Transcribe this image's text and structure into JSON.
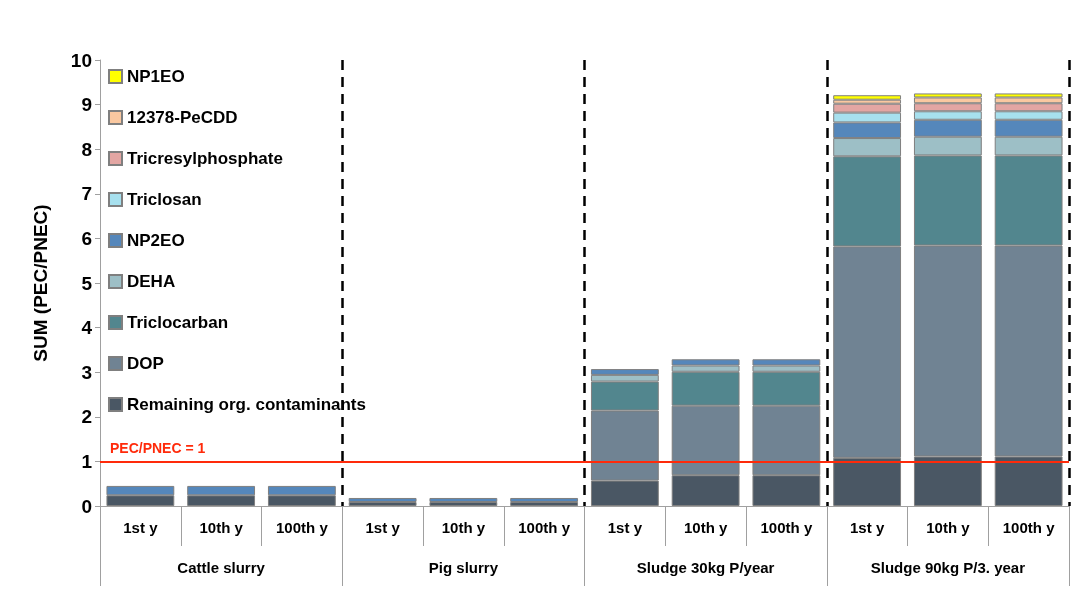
{
  "chart_data": {
    "type": "bar",
    "stacked": true,
    "ylabel": "SUM (PEC/PNEC)",
    "categories": [
      "1st y",
      "10th y",
      "100th y",
      "1st y",
      "10th y",
      "100th y",
      "1st y",
      "10th y",
      "100th y",
      "1st y",
      "10th y",
      "100th y"
    ],
    "annotations": [
      "Cattle slurry",
      "Pig slurry",
      "Sludge 30kg P/year",
      "Sludge 90kg P/3. year"
    ],
    "series": [
      {
        "name": "Remaining org. contaminants",
        "color": "#4a5764",
        "values": [
          0.24,
          0.24,
          0.24,
          0.09,
          0.09,
          0.09,
          0.57,
          0.69,
          0.69,
          1.08,
          1.11,
          1.11
        ]
      },
      {
        "name": "DOP",
        "color": "#708393",
        "values": [
          0,
          0,
          0,
          0,
          0,
          0,
          1.57,
          1.56,
          1.56,
          4.74,
          4.73,
          4.73
        ]
      },
      {
        "name": "Triclocarban",
        "color": "#52868e",
        "values": [
          0,
          0,
          0,
          0,
          0,
          0,
          0.65,
          0.76,
          0.76,
          2.02,
          2.02,
          2.02
        ]
      },
      {
        "name": "DEHA",
        "color": "#9dbfc6",
        "values": [
          0,
          0,
          0,
          0,
          0,
          0,
          0.15,
          0.14,
          0.14,
          0.41,
          0.42,
          0.42
        ]
      },
      {
        "name": "NP2EO",
        "color": "#5587bb",
        "values": [
          0.21,
          0.21,
          0.21,
          0.09,
          0.09,
          0.09,
          0.13,
          0.14,
          0.14,
          0.35,
          0.38,
          0.38
        ]
      },
      {
        "name": "Triclosan",
        "color": "#a7e0ee",
        "values": [
          0,
          0,
          0,
          0,
          0,
          0,
          0,
          0,
          0,
          0.22,
          0.19,
          0.19
        ]
      },
      {
        "name": "Tricresylphosphate",
        "color": "#e3a6a3",
        "values": [
          0,
          0,
          0,
          0,
          0,
          0,
          0,
          0,
          0,
          0.2,
          0.18,
          0.18
        ]
      },
      {
        "name": "12378-PeCDD",
        "color": "#fac8a0",
        "values": [
          0,
          0,
          0,
          0,
          0,
          0,
          0,
          0,
          0,
          0.09,
          0.13,
          0.13
        ]
      },
      {
        "name": "NP1EO",
        "color": "#ffff00",
        "values": [
          0,
          0,
          0,
          0,
          0,
          0,
          0,
          0,
          0,
          0.1,
          0.09,
          0.09
        ]
      }
    ],
    "ylim": [
      0,
      10
    ],
    "yticks": [
      0,
      1,
      2,
      3,
      4,
      5,
      6,
      7,
      8,
      9,
      10
    ],
    "grid": false,
    "legend": "top left",
    "ref_lines": [
      {
        "axis": "y",
        "value": 1,
        "label": "PEC/PNEC = 1",
        "color": "#ff2a0a"
      }
    ]
  }
}
